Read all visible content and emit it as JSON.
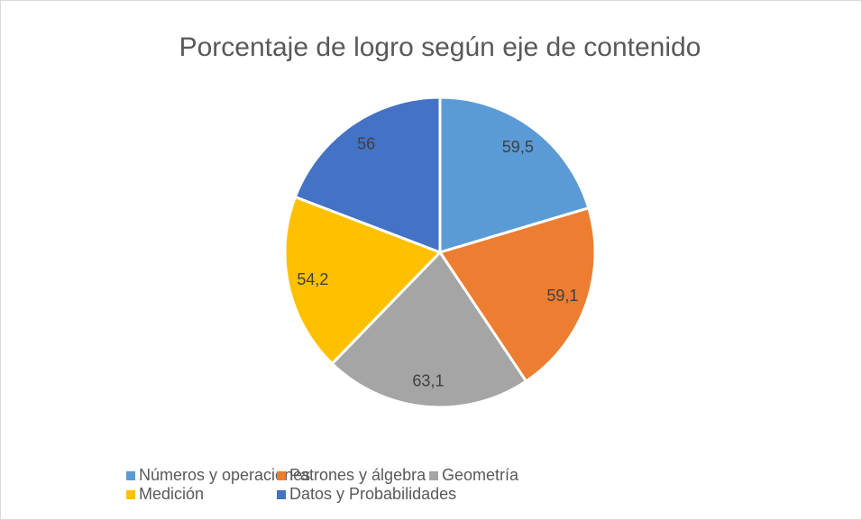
{
  "chart_data": {
    "type": "pie",
    "title": "Porcentaje de logro según eje de contenido",
    "categories": [
      "Números y operaciones",
      "Patrones y álgebra",
      "Geometría",
      "Medición",
      "Datos y Probabilidades"
    ],
    "values": [
      59.5,
      59.1,
      63.1,
      54.2,
      56
    ],
    "value_labels": [
      "59,5",
      "59,1",
      "63,1",
      "54,2",
      "56"
    ],
    "colors": [
      "#5b9bd5",
      "#ed7d31",
      "#a5a5a5",
      "#ffc000",
      "#4472c4"
    ],
    "legend": "bottom"
  }
}
